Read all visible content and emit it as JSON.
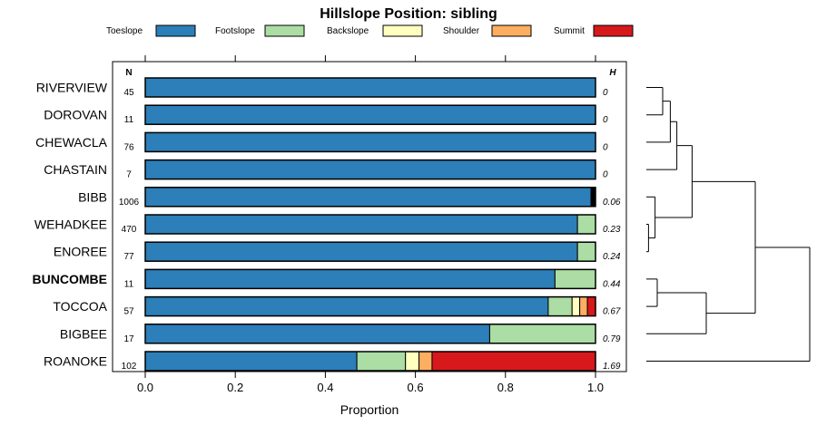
{
  "chart_data": {
    "type": "bar",
    "orientation": "horizontal",
    "stacked": true,
    "title": "Hillslope Position: sibling",
    "xlabel": "Proportion",
    "xlim": [
      0,
      1
    ],
    "xticks": [
      "0.0",
      "0.2",
      "0.4",
      "0.6",
      "0.8",
      "1.0"
    ],
    "n_header": "N",
    "h_header": "H",
    "highlight": "BUNCOMBE",
    "legend": [
      {
        "name": "Toeslope",
        "color": "#2c7fb8"
      },
      {
        "name": "Footslope",
        "color": "#abdda4"
      },
      {
        "name": "Backslope",
        "color": "#ffffbf"
      },
      {
        "name": "Shoulder",
        "color": "#fdae61"
      },
      {
        "name": "Summit",
        "color": "#d7191c"
      }
    ],
    "categories": [
      "RIVERVIEW",
      "DOROVAN",
      "CHEWACLA",
      "CHASTAIN",
      "BIBB",
      "WEHADKEE",
      "ENOREE",
      "BUNCOMBE",
      "TOCCOA",
      "BIGBEE",
      "ROANOKE"
    ],
    "n": [
      "45",
      "11",
      "76",
      "7",
      "1006",
      "470",
      "77",
      "11",
      "57",
      "17",
      "102"
    ],
    "h": [
      "0",
      "0",
      "0",
      "0",
      "0.06",
      "0.23",
      "0.24",
      "0.44",
      "0.67",
      "0.79",
      "1.69"
    ],
    "series": [
      {
        "name": "Toeslope",
        "values": [
          1.0,
          1.0,
          1.0,
          1.0,
          0.99,
          0.96,
          0.96,
          0.91,
          0.895,
          0.765,
          0.47
        ]
      },
      {
        "name": "Footslope",
        "values": [
          0,
          0,
          0,
          0,
          0,
          0.04,
          0.04,
          0.09,
          0.053,
          0.235,
          0.108
        ]
      },
      {
        "name": "Backslope",
        "values": [
          0,
          0,
          0,
          0,
          0,
          0,
          0,
          0,
          0.017,
          0,
          0.03
        ]
      },
      {
        "name": "Shoulder",
        "values": [
          0,
          0,
          0,
          0,
          0,
          0,
          0,
          0,
          0.017,
          0,
          0.029
        ]
      },
      {
        "name": "Summit",
        "values": [
          0,
          0,
          0,
          0,
          0.01,
          0,
          0,
          0,
          0.018,
          0,
          0.363
        ]
      }
    ],
    "unnamed_segment_color": "#000000",
    "dendrogram_merges": [
      [
        0,
        1,
        0.15
      ],
      [
        11,
        2,
        0.22
      ],
      [
        12,
        3,
        0.28
      ],
      [
        5,
        6,
        0.02
      ],
      [
        4,
        14,
        0.08
      ],
      [
        7,
        8,
        0.1
      ],
      [
        13,
        15,
        0.42
      ],
      [
        16,
        9,
        0.55
      ],
      [
        17,
        18,
        1.0
      ],
      [
        19,
        10,
        1.5
      ]
    ]
  }
}
